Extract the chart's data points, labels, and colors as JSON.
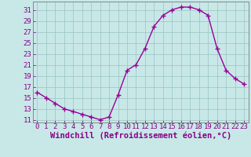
{
  "x": [
    0,
    1,
    2,
    3,
    4,
    5,
    6,
    7,
    8,
    9,
    10,
    11,
    12,
    13,
    14,
    15,
    16,
    17,
    18,
    19,
    20,
    21,
    22,
    23
  ],
  "y": [
    16,
    15,
    14,
    13,
    12.5,
    12,
    11.5,
    11,
    11.5,
    15.5,
    20,
    21,
    24,
    28,
    30,
    31,
    31.5,
    31.5,
    31,
    30,
    24,
    20,
    18.5,
    17.5
  ],
  "line_color": "#990099",
  "marker": "+",
  "marker_size": 4,
  "marker_lw": 1.0,
  "line_width": 1.0,
  "background_color": "#c8e8e8",
  "grid_color": "#a0c8c8",
  "xlabel": "Windchill (Refroidissement éolien,°C)",
  "xlabel_fontsize": 7.5,
  "yticks": [
    11,
    13,
    15,
    17,
    19,
    21,
    23,
    25,
    27,
    29,
    31
  ],
  "xticks": [
    0,
    1,
    2,
    3,
    4,
    5,
    6,
    7,
    8,
    9,
    10,
    11,
    12,
    13,
    14,
    15,
    16,
    17,
    18,
    19,
    20,
    21,
    22,
    23
  ],
  "ylim": [
    10.5,
    32.5
  ],
  "xlim": [
    -0.5,
    23.5
  ],
  "tick_fontsize": 6.5,
  "label_color": "#880088",
  "spine_color": "#888888"
}
